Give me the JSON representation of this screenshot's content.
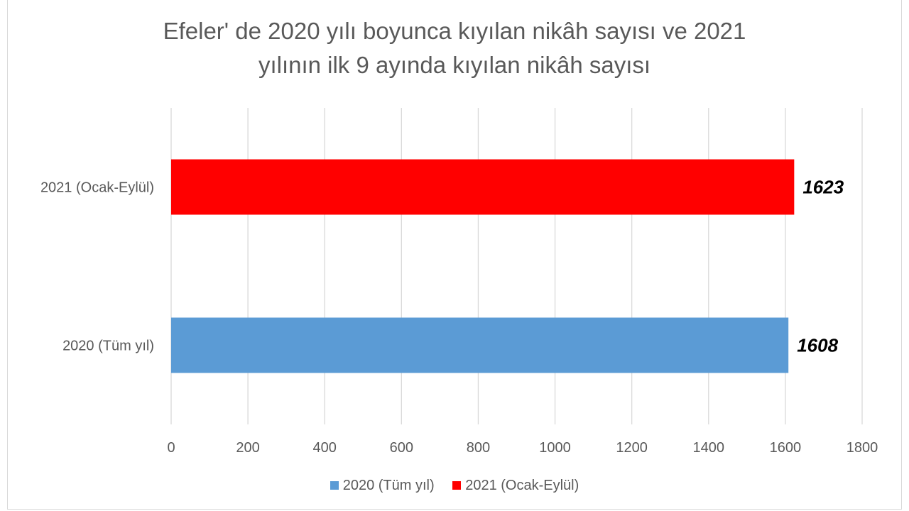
{
  "chart_data": {
    "type": "bar",
    "orientation": "horizontal",
    "title_lines": [
      "Efeler' de 2020 yılı boyunca kıyılan nikâh sayısı ve 2021",
      "yılının ilk 9 ayında kıyılan nikâh sayısı"
    ],
    "categories": [
      "2020 (Tüm yıl)",
      "2021 (Ocak-Eylül)"
    ],
    "values": [
      1608,
      1623
    ],
    "value_labels": [
      "1608",
      "1623"
    ],
    "colors": [
      "#5b9bd5",
      "#ff0000"
    ],
    "xlim": [
      0,
      1800
    ],
    "ticks": [
      "0",
      "200",
      "400",
      "600",
      "800",
      "1000",
      "1200",
      "1400",
      "1600",
      "1800"
    ],
    "tick_values": [
      0,
      200,
      400,
      600,
      800,
      1000,
      1200,
      1400,
      1600,
      1800
    ],
    "grid": true,
    "legend_position": "bottom",
    "legend": [
      {
        "label": "2020 (Tüm yıl)",
        "color": "#5b9bd5"
      },
      {
        "label": "2021 (Ocak-Eylül)",
        "color": "#ff0000"
      }
    ]
  }
}
